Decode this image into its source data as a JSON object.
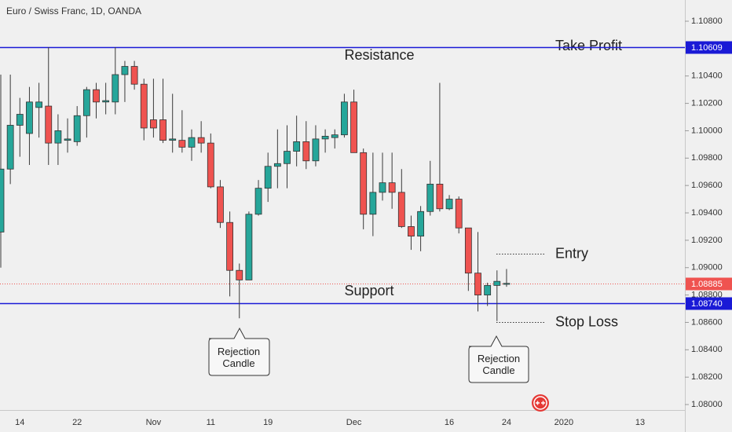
{
  "chart_data": {
    "type": "candlestick",
    "title": "Euro / Swiss Franc, 1D, OANDA",
    "categories": [
      null,
      null,
      "14",
      null,
      null,
      null,
      null,
      null,
      "22",
      null,
      null,
      null,
      null,
      null,
      null,
      null,
      "Nov",
      null,
      null,
      null,
      null,
      null,
      "11",
      null,
      null,
      null,
      null,
      null,
      "19",
      null,
      null,
      null,
      null,
      null,
      null,
      null,
      null,
      "Dec",
      null,
      null,
      null,
      null,
      null,
      null,
      null,
      null,
      null,
      "16",
      null,
      null,
      null,
      null,
      null,
      "24",
      null,
      null,
      null,
      null,
      null,
      "2020",
      null,
      null,
      null,
      null,
      null,
      null,
      null,
      "13",
      null,
      null,
      null,
      null
    ],
    "open": [
      1.0926,
      1.0972,
      1.1004,
      1.0998,
      1.1017,
      1.1018,
      1.0991,
      1.0993,
      1.0992,
      1.1011,
      1.103,
      1.1021,
      1.1021,
      1.1041,
      1.1047,
      1.1034,
      1.1008,
      1.1008,
      1.0993,
      1.0993,
      1.0988,
      1.0995,
      1.0991,
      1.0959,
      1.0933,
      1.0898,
      1.0891,
      1.0939,
      1.0958,
      1.0974,
      1.0976,
      1.0985,
      1.0992,
      1.0978,
      1.0994,
      1.0995,
      1.0997,
      1.1021,
      1.0984,
      1.0939,
      1.0955,
      1.0962,
      1.0955,
      1.093,
      1.0923,
      1.0941,
      1.0961,
      1.0943,
      1.095,
      1.0929,
      1.0896,
      1.088,
      1.0887,
      1.0888,
      null,
      null,
      null,
      null,
      null,
      null,
      null,
      null,
      null,
      null,
      null,
      null,
      null,
      null,
      null,
      null,
      null,
      null
    ],
    "high": [
      1.1041,
      1.1041,
      1.1024,
      1.1032,
      1.1035,
      1.1061,
      1.1012,
      1.1009,
      1.1018,
      1.1032,
      1.1035,
      1.1035,
      1.1061,
      1.1051,
      1.1051,
      1.1038,
      1.1038,
      1.1038,
      1.1027,
      1.1015,
      1.1001,
      1.1007,
      1.0998,
      1.0964,
      1.0941,
      1.0903,
      1.0941,
      1.0964,
      1.0984,
      1.1001,
      1.1004,
      1.1011,
      1.1007,
      1.1004,
      1.1001,
      1.1001,
      1.1027,
      1.103,
      1.0987,
      1.0984,
      1.0984,
      1.0984,
      1.0972,
      1.0938,
      1.0945,
      1.0978,
      1.1035,
      1.0953,
      1.0952,
      1.0929,
      1.0926,
      1.0889,
      1.0898,
      1.0899,
      null,
      null,
      null,
      null,
      null,
      null,
      null,
      null,
      null,
      null,
      null,
      null,
      null,
      null,
      null,
      null,
      null,
      null
    ],
    "low": [
      1.09,
      1.0961,
      1.0981,
      1.0975,
      1.0995,
      1.0975,
      1.0975,
      1.0984,
      1.0989,
      1.0995,
      1.1009,
      1.1012,
      1.1012,
      1.1021,
      1.103,
      1.0993,
      1.0995,
      1.0991,
      1.0984,
      1.0984,
      1.0978,
      1.0984,
      1.0958,
      1.0929,
      1.0879,
      1.0863,
      1.0891,
      1.0938,
      1.0948,
      1.0958,
      1.0958,
      1.0974,
      1.0972,
      1.0974,
      1.0984,
      1.0987,
      1.0995,
      1.0984,
      1.0928,
      1.0923,
      1.0949,
      1.0943,
      1.0929,
      1.0913,
      1.0912,
      1.0938,
      1.0941,
      1.0942,
      1.0925,
      1.0883,
      1.0868,
      1.0872,
      1.0861,
      1.0886,
      null,
      null,
      null,
      null,
      null,
      null,
      null,
      null,
      null,
      null,
      null,
      null,
      null,
      null,
      null,
      null,
      null,
      null
    ],
    "close": [
      1.0972,
      1.1004,
      1.1012,
      1.1021,
      1.1021,
      1.0991,
      1.1,
      1.0994,
      1.1011,
      1.103,
      1.1021,
      1.1022,
      1.1041,
      1.1047,
      1.1034,
      1.1002,
      1.1002,
      1.0993,
      1.0994,
      1.0988,
      1.0995,
      1.0991,
      1.0959,
      1.0933,
      1.0898,
      1.0891,
      1.0939,
      1.0958,
      1.0974,
      1.0976,
      1.0985,
      1.0992,
      1.0978,
      1.0994,
      1.0996,
      1.0997,
      1.1021,
      1.0984,
      1.0939,
      1.0955,
      1.0962,
      1.0955,
      1.093,
      1.0923,
      1.0941,
      1.0961,
      1.0943,
      1.095,
      1.0929,
      1.0896,
      1.088,
      1.0887,
      1.089,
      1.08885,
      null,
      null,
      null,
      null,
      null,
      null,
      null,
      null,
      null,
      null,
      null,
      null,
      null,
      null,
      null,
      null,
      null,
      null
    ],
    "up_color": "#26a69a",
    "down_color": "#ef5350",
    "wick_color": "#3a3a3a",
    "ylim": [
      1.0796,
      1.10955
    ],
    "yticks": [
      {
        "value": 1.108,
        "label": "1.10800"
      },
      {
        "value": 1.104,
        "label": "1.10400"
      },
      {
        "value": 1.102,
        "label": "1.10200"
      },
      {
        "value": 1.1,
        "label": "1.10000"
      },
      {
        "value": 1.098,
        "label": "1.09800"
      },
      {
        "value": 1.096,
        "label": "1.09600"
      },
      {
        "value": 1.094,
        "label": "1.09400"
      },
      {
        "value": 1.092,
        "label": "1.09200"
      },
      {
        "value": 1.09,
        "label": "1.09000"
      },
      {
        "value": 1.088,
        "label": "1.08800"
      },
      {
        "value": 1.086,
        "label": "1.08600"
      },
      {
        "value": 1.084,
        "label": "1.08400"
      },
      {
        "value": 1.082,
        "label": "1.08200"
      },
      {
        "value": 1.08,
        "label": "1.08000"
      }
    ],
    "grid": false,
    "levels": [
      {
        "value": 1.10609,
        "label": "1.10609",
        "color": "#1a1ad6",
        "style": "solid"
      },
      {
        "value": 1.0874,
        "label": "1.08740",
        "color": "#1a1ad6",
        "style": "solid"
      },
      {
        "value": 1.08885,
        "label": "1.08885",
        "color": "#ef5350",
        "style": "dotted"
      }
    ],
    "markers": [
      {
        "text": "Entry",
        "value": 1.091
      },
      {
        "text": "Stop Loss",
        "value": 1.086
      }
    ],
    "annotations": [
      {
        "text": "Take Profit"
      },
      {
        "text": "Resistance"
      },
      {
        "text": "Support"
      }
    ],
    "callouts": [
      {
        "text": "Rejection Candle"
      },
      {
        "text": "Rejection Candle"
      }
    ]
  }
}
